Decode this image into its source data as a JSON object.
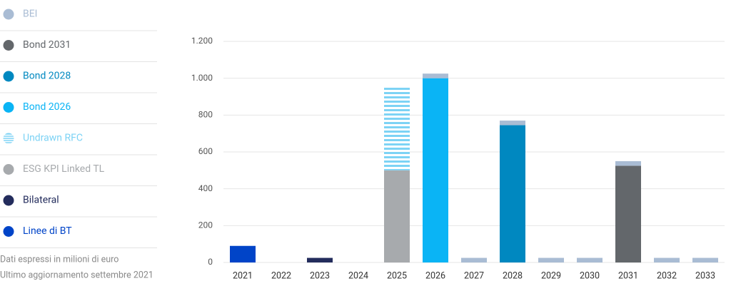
{
  "chart_data": {
    "type": "stacked-bar",
    "categories": [
      "2021",
      "2022",
      "2023",
      "2024",
      "2025",
      "2026",
      "2027",
      "2028",
      "2029",
      "2030",
      "2031",
      "2032",
      "2033"
    ],
    "series": [
      {
        "name": "BEI",
        "color": "#a9bcd4",
        "values": [
          null,
          null,
          null,
          null,
          null,
          25,
          25,
          25,
          25,
          25,
          25,
          25,
          25
        ]
      },
      {
        "name": "Bond 2031",
        "color": "#63676b",
        "values": [
          null,
          null,
          null,
          null,
          null,
          null,
          null,
          null,
          null,
          null,
          525,
          null,
          null
        ]
      },
      {
        "name": "Bond 2028",
        "color": "#0088c0",
        "values": [
          null,
          null,
          null,
          null,
          null,
          null,
          null,
          745,
          null,
          null,
          null,
          null,
          null
        ]
      },
      {
        "name": "Bond 2026",
        "color": "#0ab4f5",
        "values": [
          null,
          null,
          null,
          null,
          null,
          1000,
          null,
          null,
          null,
          null,
          null,
          null,
          null
        ]
      },
      {
        "name": "Undrawn RFC",
        "color": "#7dd3f5",
        "pattern": "striped",
        "values": [
          null,
          null,
          null,
          null,
          460,
          null,
          null,
          null,
          null,
          null,
          null,
          null,
          null
        ]
      },
      {
        "name": "ESG KPI Linked TL",
        "color": "#a7aaad",
        "values": [
          null,
          null,
          null,
          null,
          500,
          null,
          null,
          null,
          null,
          null,
          null,
          null,
          null
        ]
      },
      {
        "name": "Bilateral",
        "color": "#232c5c",
        "values": [
          null,
          null,
          25,
          null,
          null,
          null,
          null,
          null,
          null,
          null,
          null,
          null,
          null
        ]
      },
      {
        "name": "Linee di BT",
        "color": "#0044c8",
        "values": [
          90,
          null,
          null,
          null,
          null,
          null,
          null,
          null,
          null,
          null,
          null,
          null,
          null
        ]
      }
    ],
    "ylim": [
      0,
      1200
    ],
    "yticks": [
      0,
      200,
      400,
      600,
      800,
      {
        "value": 1000,
        "label": "1.000"
      },
      {
        "value": 1200,
        "label": "1.200"
      }
    ],
    "grid": true,
    "notes": [
      "Dati espressi in milioni di euro",
      "Ultimo aggiornamento settembre 2021"
    ]
  }
}
